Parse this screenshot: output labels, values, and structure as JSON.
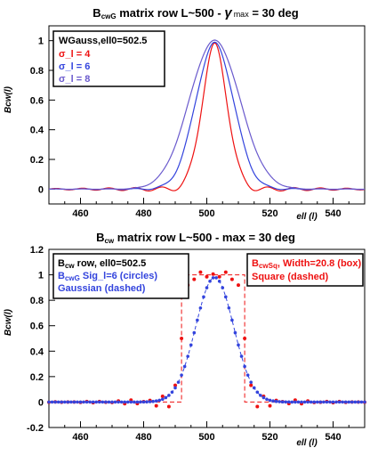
{
  "colors": {
    "red": "#ee1111",
    "blue": "#3344dd",
    "violet": "#6a5acd",
    "black": "#000000"
  },
  "chart_data": [
    {
      "type": "line",
      "title_main": "B",
      "title_sub": "cwG",
      "title_rest": " matrix row L~500 - ",
      "title_gamma": "γ",
      "title_max": "max",
      "title_end": " = 30 deg",
      "xlabel": "ell (l)",
      "ylabel": "Bcw(l)",
      "xlim": [
        450,
        550
      ],
      "ylim": [
        -0.1,
        1.1
      ],
      "xticks": [
        "460",
        "480",
        "500",
        "520",
        "540"
      ],
      "yticks": [
        "0",
        "0.2",
        "0.4",
        "0.6",
        "0.8",
        "1"
      ],
      "legend": {
        "placement": "top-left",
        "header": "WGauss,ell0=502.5",
        "entries": [
          "σ_l = 4",
          "σ_l = 6",
          "σ_l = 8"
        ]
      },
      "series": [
        {
          "name": "σ_l = 4",
          "color": "#ee1111",
          "sigma": 4,
          "peak": 0.96,
          "center": 502.5,
          "wiggle": 0.025
        },
        {
          "name": "σ_l = 6",
          "color": "#3344dd",
          "sigma": 6,
          "peak": 0.98,
          "center": 502.5,
          "wiggle": 0.01
        },
        {
          "name": "σ_l = 8",
          "color": "#6a5acd",
          "sigma": 8,
          "peak": 1.0,
          "center": 502.5,
          "wiggle": 0.004
        }
      ]
    },
    {
      "type": "line",
      "title_main": "B",
      "title_sub": "cw",
      "title_rest": " matrix row L~500 -    max = 30 deg",
      "xlabel": "ell (l)",
      "ylabel": "Bcw(l)",
      "xlim": [
        450,
        550
      ],
      "ylim": [
        -0.2,
        1.2
      ],
      "xticks": [
        "460",
        "480",
        "500",
        "520",
        "540"
      ],
      "yticks": [
        "-0.2",
        "0",
        "0.2",
        "0.4",
        "0.6",
        "0.8",
        "1",
        "1.2"
      ],
      "legend_left": {
        "placement": "top-left",
        "header_main": "B",
        "header_sub": "cw",
        "header_rest": " row, ell0=502.5",
        "line2_main": "B",
        "line2_sub": "cwG",
        "line2_rest": " Sig_l=6 (circles)",
        "line3": "Gaussian (dashed)"
      },
      "legend_right": {
        "placement": "top-right",
        "line1_main": "B",
        "line1_sub": "cwSq",
        "line1_rest": ", Width=20.8 (box)",
        "line2": "Square (dashed)"
      },
      "series": [
        {
          "name": "Gaussian",
          "color": "#3344dd",
          "style": "dashed",
          "sigma": 6,
          "center": 502.5,
          "peak": 0.98
        },
        {
          "name": "circles",
          "color": "#3344dd",
          "style": "markers",
          "sigma": 6,
          "center": 502.5,
          "peak": 0.98
        },
        {
          "name": "Square",
          "color": "#ee1111",
          "style": "dashed",
          "low": 492,
          "high": 512,
          "peak": 1.0
        },
        {
          "name": "box",
          "color": "#ee1111",
          "style": "markers",
          "low": 492,
          "high": 512,
          "peak": 1.0
        }
      ]
    }
  ]
}
